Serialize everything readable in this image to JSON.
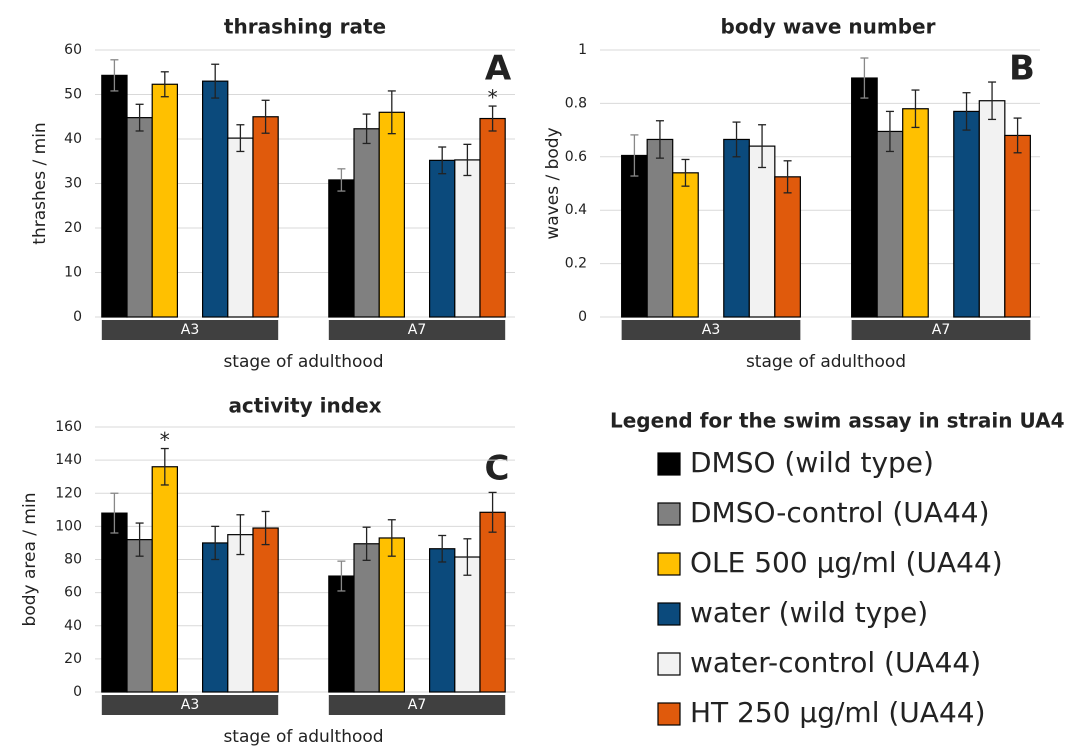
{
  "legend": {
    "title": "Legend for the swim assay in strain UA44:",
    "series": [
      {
        "name": "DMSO (wild type)",
        "color": "#000000"
      },
      {
        "name": "DMSO-control (UA44)",
        "color": "#808080"
      },
      {
        "name": "OLE 500 µg/ml (UA44)",
        "color": "#ffc000"
      },
      {
        "name": "water (wild type)",
        "color": "#0b4a7c"
      },
      {
        "name": "water-control (UA44)",
        "color": "#f2f2f2"
      },
      {
        "name": "HT 250 µg/ml (UA44)",
        "color": "#e05a0c"
      }
    ]
  },
  "chart_data": [
    {
      "type": "bar",
      "title": "thrashing rate",
      "label": "A",
      "xlabel": "stage of adulthood",
      "ylabel": "thrashes / min",
      "categories": [
        "A3",
        "A7"
      ],
      "ylim": [
        0,
        60
      ],
      "yticks": [
        0,
        10,
        20,
        30,
        40,
        50,
        60
      ],
      "grid": true,
      "series": [
        {
          "values": [
            54.3,
            30.8
          ],
          "errors": [
            3.5,
            2.5
          ]
        },
        {
          "values": [
            44.8,
            42.3
          ],
          "errors": [
            3.0,
            3.3
          ]
        },
        {
          "values": [
            52.3,
            46.0
          ],
          "errors": [
            2.8,
            4.8
          ]
        },
        {
          "values": [
            53.0,
            35.2
          ],
          "errors": [
            3.8,
            3.0
          ]
        },
        {
          "values": [
            40.2,
            35.3
          ],
          "errors": [
            3.0,
            3.5
          ]
        },
        {
          "values": [
            45.0,
            44.6
          ],
          "errors": [
            3.7,
            2.8
          ]
        }
      ],
      "annotations": [
        {
          "text": "*",
          "series": 5,
          "category": 1
        }
      ]
    },
    {
      "type": "bar",
      "title": "body wave number",
      "label": "B",
      "xlabel": "stage of adulthood",
      "ylabel": "waves / body",
      "categories": [
        "A3",
        "A7"
      ],
      "ylim": [
        0,
        1
      ],
      "yticks": [
        0,
        0.2,
        0.4,
        0.6,
        0.8,
        1
      ],
      "grid": true,
      "series": [
        {
          "values": [
            0.605,
            0.895
          ],
          "errors": [
            0.077,
            0.075
          ]
        },
        {
          "values": [
            0.665,
            0.695
          ],
          "errors": [
            0.07,
            0.075
          ]
        },
        {
          "values": [
            0.54,
            0.78
          ],
          "errors": [
            0.05,
            0.07
          ]
        },
        {
          "values": [
            0.665,
            0.77
          ],
          "errors": [
            0.065,
            0.07
          ]
        },
        {
          "values": [
            0.64,
            0.81
          ],
          "errors": [
            0.08,
            0.07
          ]
        },
        {
          "values": [
            0.525,
            0.68
          ],
          "errors": [
            0.06,
            0.065
          ]
        }
      ],
      "annotations": []
    },
    {
      "type": "bar",
      "title": "activity index",
      "label": "C",
      "xlabel": "stage of adulthood",
      "ylabel": "body area / min",
      "categories": [
        "A3",
        "A7"
      ],
      "ylim": [
        0,
        160
      ],
      "yticks": [
        0,
        20,
        40,
        60,
        80,
        100,
        120,
        140,
        160
      ],
      "grid": true,
      "series": [
        {
          "values": [
            108,
            70
          ],
          "errors": [
            12,
            9
          ]
        },
        {
          "values": [
            92,
            89.5
          ],
          "errors": [
            10,
            10
          ]
        },
        {
          "values": [
            136,
            93
          ],
          "errors": [
            11,
            11
          ]
        },
        {
          "values": [
            90,
            86.5
          ],
          "errors": [
            10,
            8
          ]
        },
        {
          "values": [
            95,
            81.5
          ],
          "errors": [
            12,
            11
          ]
        },
        {
          "values": [
            99,
            108.5
          ],
          "errors": [
            10,
            12
          ]
        }
      ],
      "annotations": [
        {
          "text": "*",
          "series": 2,
          "category": 0
        }
      ]
    }
  ]
}
